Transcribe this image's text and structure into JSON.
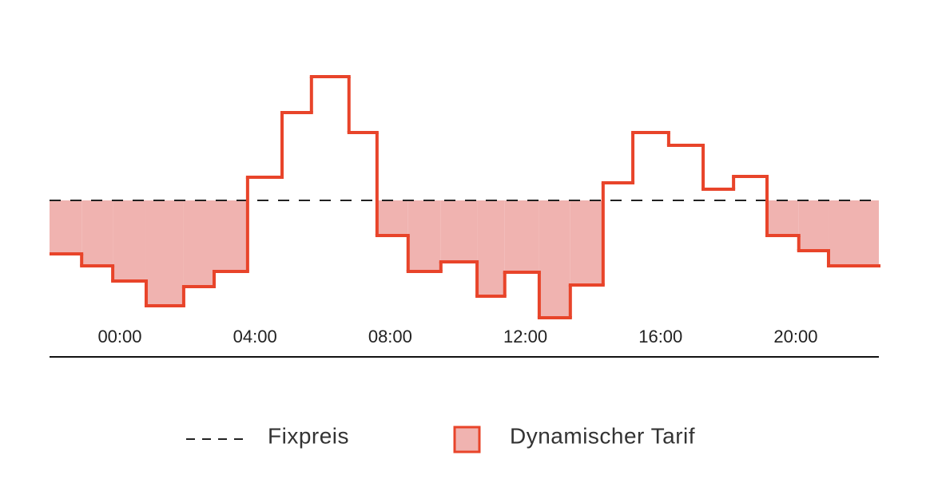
{
  "chart_data": {
    "type": "step",
    "x": [
      -2.08,
      -1.13,
      -0.21,
      0.78,
      1.89,
      2.79,
      3.78,
      4.8,
      5.67,
      6.78,
      7.61,
      8.53,
      9.5,
      10.57,
      11.39,
      12.41,
      13.33,
      14.3,
      15.18,
      16.24,
      17.26,
      18.16,
      19.15,
      20.09,
      20.97
    ],
    "xlim": [
      -2.08,
      22.46
    ],
    "ylim": [
      0,
      40
    ],
    "xticks": [
      {
        "value": 0,
        "label": "00:00"
      },
      {
        "value": 4,
        "label": "04:00"
      },
      {
        "value": 8,
        "label": "08:00"
      },
      {
        "value": 12,
        "label": "12:00"
      },
      {
        "value": 16,
        "label": "16:00"
      },
      {
        "value": 20,
        "label": "20:00"
      }
    ],
    "fixed_price": {
      "name": "Fixpreis",
      "value": 19.6,
      "color": "#222222"
    },
    "series": [
      {
        "name": "Dynamischer Tarif",
        "color": "#e8442a",
        "fill": "#f0b3b0",
        "values": [
          12.9,
          11.4,
          9.5,
          6.4,
          8.8,
          10.7,
          22.5,
          30.6,
          35.1,
          28.1,
          15.2,
          10.7,
          11.9,
          7.6,
          10.6,
          4.9,
          9.0,
          21.8,
          28.1,
          26.5,
          21.0,
          22.6,
          15.2,
          13.3,
          11.4
        ]
      }
    ]
  }
}
